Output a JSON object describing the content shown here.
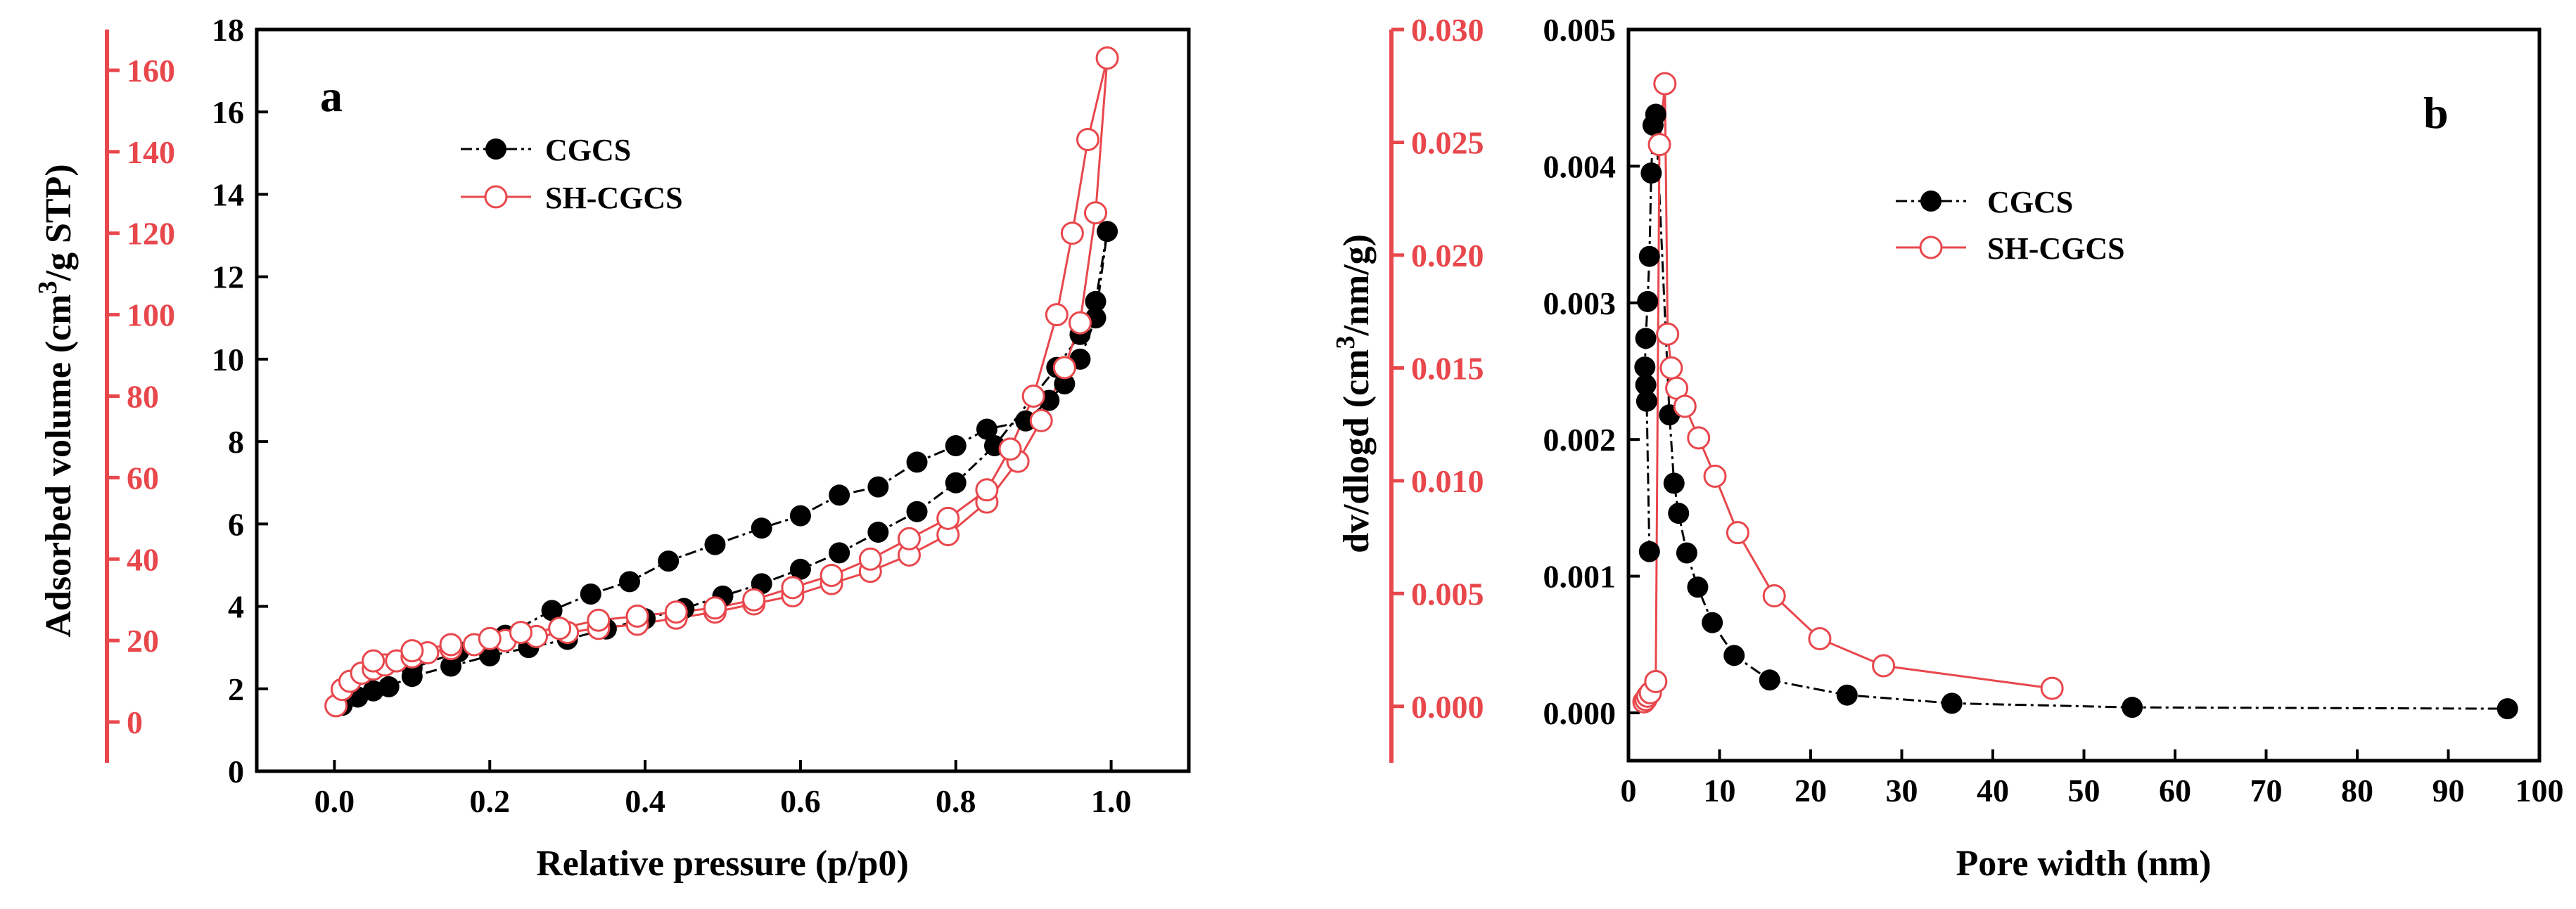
{
  "colors": {
    "black_series": "#000000",
    "red_series": "#e8474c",
    "background": "#ffffff"
  },
  "chart_data": [
    {
      "panel": "a",
      "type": "scatter",
      "subtype": "isotherm",
      "xlabel": "Relative pressure (p/p0)",
      "ylabel_main": "Adsorbed volume (cm",
      "ylabel_sup": "3",
      "ylabel_tail": "/g STP)",
      "xlim": [
        -0.1,
        1.1
      ],
      "ylim_left": [
        0,
        18
      ],
      "ylim_right": [
        -10,
        170
      ],
      "x_ticks": [
        0.0,
        0.2,
        0.4,
        0.6,
        0.8,
        1.0
      ],
      "x_tick_labels": [
        "0.0",
        "0.2",
        "0.4",
        "0.6",
        "0.8",
        "1.0"
      ],
      "y_left_ticks": [
        0,
        2,
        4,
        6,
        8,
        10,
        12,
        14,
        16,
        18
      ],
      "y_left_tick_labels": [
        "0",
        "2",
        "4",
        "6",
        "8",
        "10",
        "12",
        "14",
        "16",
        "18"
      ],
      "y_right_ticks": [
        0,
        20,
        40,
        60,
        80,
        100,
        120,
        140,
        160
      ],
      "y_right_tick_labels": [
        "0",
        "20",
        "40",
        "60",
        "80",
        "100",
        "120",
        "140",
        "160"
      ],
      "legend_position": "upper-left",
      "series": [
        {
          "name": "CGCS",
          "axis": "left",
          "marker": "filled-circle",
          "color": "#000000",
          "line": "dash-dot",
          "x": [
            0.01,
            0.03,
            0.05,
            0.07,
            0.1,
            0.15,
            0.2,
            0.25,
            0.3,
            0.35,
            0.4,
            0.45,
            0.5,
            0.55,
            0.6,
            0.65,
            0.7,
            0.75,
            0.8,
            0.85,
            0.9,
            0.93,
            0.96,
            0.98,
            0.995,
            0.98,
            0.96,
            0.94,
            0.92,
            0.89,
            0.84,
            0.8,
            0.75,
            0.7,
            0.65,
            0.6,
            0.55,
            0.49,
            0.43,
            0.38,
            0.33,
            0.28,
            0.22,
            0.16,
            0.1
          ],
          "y": [
            1.6,
            1.8,
            1.95,
            2.05,
            2.3,
            2.55,
            2.8,
            3.0,
            3.2,
            3.45,
            3.7,
            3.95,
            4.25,
            4.55,
            4.9,
            5.3,
            5.8,
            6.3,
            7.0,
            7.9,
            9.1,
            9.8,
            10.6,
            11.4,
            13.1,
            11.0,
            10.0,
            9.4,
            9.0,
            8.5,
            8.3,
            7.9,
            7.5,
            6.9,
            6.7,
            6.2,
            5.9,
            5.5,
            5.1,
            4.6,
            4.3,
            3.9,
            3.3,
            2.9,
            2.5
          ]
        },
        {
          "name": "SH-CGCS",
          "axis": "right",
          "marker": "open-circle",
          "color": "#e8474c",
          "line": "solid",
          "x": [
            0.002,
            0.01,
            0.02,
            0.035,
            0.05,
            0.065,
            0.08,
            0.1,
            0.12,
            0.15,
            0.18,
            0.22,
            0.26,
            0.3,
            0.34,
            0.39,
            0.44,
            0.49,
            0.54,
            0.59,
            0.64,
            0.69,
            0.74,
            0.79,
            0.84,
            0.88,
            0.91,
            0.94,
            0.96,
            0.98,
            0.995,
            0.97,
            0.95,
            0.93,
            0.9,
            0.87,
            0.84,
            0.79,
            0.74,
            0.69,
            0.64,
            0.59,
            0.54,
            0.49,
            0.44,
            0.39,
            0.34,
            0.29,
            0.24,
            0.2,
            0.15,
            0.1,
            0.05
          ],
          "y": [
            4,
            8,
            10,
            12,
            13,
            14,
            15,
            16,
            17,
            18,
            19,
            20,
            21,
            22,
            23,
            24,
            25.5,
            27,
            29,
            31,
            34,
            37,
            41,
            46,
            54,
            64,
            74,
            87,
            98,
            125,
            163,
            143,
            120,
            100,
            80,
            67,
            57,
            50,
            45,
            40,
            36,
            33,
            30,
            28,
            27,
            26,
            25,
            23,
            22,
            20.5,
            19,
            17.5,
            15
          ]
        }
      ]
    },
    {
      "panel": "b",
      "type": "scatter",
      "subtype": "pore-size-distribution",
      "xlabel": "Pore width (nm)",
      "ylabel_main": "dv/dlogd (cm",
      "ylabel_sup": "3",
      "ylabel_tail": "/nm/g)",
      "xlim": [
        0,
        100
      ],
      "ylim_left": [
        -0.00035,
        0.005
      ],
      "ylim_right": [
        -0.0025,
        0.03
      ],
      "x_ticks": [
        0,
        10,
        20,
        30,
        40,
        50,
        60,
        70,
        80,
        90,
        100
      ],
      "x_tick_labels": [
        "0",
        "10",
        "20",
        "30",
        "40",
        "50",
        "60",
        "70",
        "80",
        "90",
        "100"
      ],
      "y_left_ticks": [
        0,
        0.001,
        0.002,
        0.003,
        0.004,
        0.005
      ],
      "y_left_tick_labels": [
        "0.000",
        "0.001",
        "0.002",
        "0.003",
        "0.004",
        "0.005"
      ],
      "y_right_ticks": [
        0,
        0.005,
        0.01,
        0.015,
        0.02,
        0.025,
        0.03
      ],
      "y_right_tick_labels": [
        "0.000",
        "0.005",
        "0.010",
        "0.015",
        "0.020",
        "0.025",
        "0.030"
      ],
      "legend_position": "upper-center",
      "series": [
        {
          "name": "CGCS",
          "axis": "left",
          "marker": "filled-circle",
          "color": "#000000",
          "line": "dash-dot",
          "x": [
            2.3,
            2.0,
            1.9,
            1.8,
            1.9,
            2.1,
            2.3,
            2.5,
            2.7,
            3.0,
            4.5,
            5.0,
            5.5,
            6.4,
            7.6,
            9.2,
            11.6,
            15.5,
            24.0,
            35.5,
            55.3,
            96.5
          ],
          "y": [
            0.00118,
            0.00228,
            0.0024,
            0.00253,
            0.00274,
            0.00301,
            0.00334,
            0.00395,
            0.0043,
            0.00438,
            0.00218,
            0.00168,
            0.00146,
            0.00117,
            0.00092,
            0.00066,
            0.00042,
            0.00024,
            0.00013,
            7e-05,
            4e-05,
            3e-05
          ]
        },
        {
          "name": "SH-CGCS",
          "axis": "right",
          "marker": "open-circle",
          "color": "#e8474c",
          "line": "solid",
          "x": [
            1.7,
            1.9,
            2.1,
            2.4,
            3.0,
            3.4,
            4.0,
            4.3,
            4.7,
            5.3,
            6.2,
            7.7,
            9.5,
            12.0,
            16.0,
            21.0,
            28.0,
            46.5
          ],
          "y": [
            0.0002,
            0.0003,
            0.00045,
            0.0006,
            0.0011,
            0.0249,
            0.0276,
            0.0165,
            0.015,
            0.0141,
            0.0133,
            0.0119,
            0.0102,
            0.0077,
            0.0049,
            0.003,
            0.0018,
            0.0008
          ]
        }
      ]
    }
  ]
}
